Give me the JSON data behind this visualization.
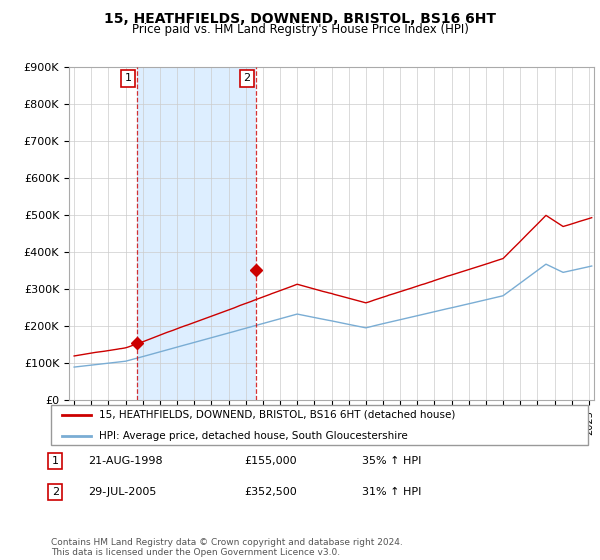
{
  "title": "15, HEATHFIELDS, DOWNEND, BRISTOL, BS16 6HT",
  "subtitle": "Price paid vs. HM Land Registry's House Price Index (HPI)",
  "legend_line1": "15, HEATHFIELDS, DOWNEND, BRISTOL, BS16 6HT (detached house)",
  "legend_line2": "HPI: Average price, detached house, South Gloucestershire",
  "transaction1_date": "21-AUG-1998",
  "transaction1_price": "£155,000",
  "transaction1_hpi": "35% ↑ HPI",
  "transaction2_date": "29-JUL-2005",
  "transaction2_price": "£352,500",
  "transaction2_hpi": "31% ↑ HPI",
  "footer": "Contains HM Land Registry data © Crown copyright and database right 2024.\nThis data is licensed under the Open Government Licence v3.0.",
  "red_color": "#cc0000",
  "blue_color": "#7aadd4",
  "shade_color": "#ddeeff",
  "ylim": [
    0,
    900000
  ],
  "yticks": [
    0,
    100000,
    200000,
    300000,
    400000,
    500000,
    600000,
    700000,
    800000,
    900000
  ],
  "ytick_labels": [
    "£0",
    "£100K",
    "£200K",
    "£300K",
    "£400K",
    "£500K",
    "£600K",
    "£700K",
    "£800K",
    "£900K"
  ],
  "transaction1_x": 1998.64,
  "transaction1_y": 155000,
  "transaction2_x": 2005.58,
  "transaction2_y": 352500,
  "xmin": 1995.0,
  "xmax": 2025.3
}
